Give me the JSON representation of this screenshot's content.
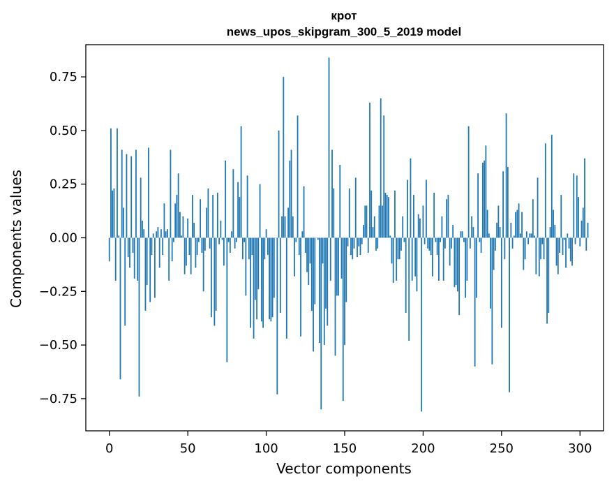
{
  "chart_data": {
    "type": "bar",
    "title": "крот",
    "subtitle": "news_upos_skipgram_300_5_2019 model",
    "xlabel": "Vector components",
    "ylabel": "Components values",
    "xlim": [
      -15,
      315
    ],
    "ylim": [
      -0.9,
      0.9
    ],
    "xticks": [
      0,
      50,
      100,
      150,
      200,
      250,
      300
    ],
    "yticks": [
      -0.75,
      -0.5,
      -0.25,
      0.0,
      0.25,
      0.5,
      0.75
    ],
    "ytick_labels": [
      "−0.75",
      "−0.50",
      "−0.25",
      "0.00",
      "0.25",
      "0.50",
      "0.75"
    ],
    "bar_color": "#1f77b4",
    "values": [
      -0.11,
      0.51,
      0.22,
      0.23,
      -0.2,
      0.51,
      0.01,
      -0.66,
      0.41,
      0.14,
      -0.41,
      0.39,
      -0.09,
      -0.14,
      0.38,
      -0.07,
      -0.19,
      0.41,
      -0.2,
      -0.74,
      0.28,
      0.08,
      0.04,
      -0.34,
      -0.22,
      0.42,
      -0.3,
      -0.08,
      0.02,
      -0.28,
      0.03,
      0.05,
      -0.14,
      0.04,
      -0.08,
      0.16,
      0.03,
      0.04,
      -0.2,
      0.41,
      -0.11,
      -0.02,
      0.16,
      0.2,
      0.3,
      0.12,
      0.01,
      0.1,
      -0.17,
      -0.13,
      0.09,
      -0.08,
      -0.17,
      0.2,
      0.07,
      -0.14,
      -0.08,
      -0.02,
      0.18,
      -0.07,
      -0.25,
      -0.06,
      0.14,
      0.23,
      -0.05,
      -0.37,
      0.2,
      -0.41,
      -0.34,
      0.21,
      -0.03,
      0.08,
      -0.01,
      -0.13,
      0.36,
      -0.58,
      -0.02,
      -0.07,
      0.03,
      0.32,
      -0.05,
      -0.02,
      0.26,
      0.19,
      0.52,
      -0.1,
      -0.02,
      -0.27,
      0.29,
      -0.1,
      -0.42,
      -0.08,
      -0.47,
      -0.29,
      -0.38,
      -0.24,
      0.25,
      -0.39,
      -0.42,
      -0.1,
      0.04,
      -0.08,
      -0.38,
      -0.39,
      -0.37,
      -0.28,
      0.0,
      -0.73,
      0.5,
      -0.35,
      0.1,
      0.75,
      0.1,
      -0.47,
      0.14,
      0.36,
      0.41,
      0.1,
      -0.18,
      -0.02,
      0.57,
      -0.08,
      -0.46,
      0.03,
      0.24,
      -0.07,
      -0.16,
      -0.22,
      -0.12,
      -0.34,
      -0.53,
      -0.31,
      0.0,
      -0.01,
      -0.49,
      -0.8,
      -0.12,
      -0.5,
      -0.33,
      -0.41,
      0.84,
      -0.2,
      0.41,
      0.23,
      -0.55,
      -0.27,
      -0.27,
      0.34,
      -0.19,
      -0.76,
      -0.5,
      -0.3,
      -0.04,
      0.23,
      -0.08,
      -0.1,
      -0.05,
      0.28,
      -0.09,
      -0.04,
      -0.08,
      -0.03,
      0.06,
      0.15,
      0.15,
      -0.07,
      0.63,
      0.22,
      0.05,
      0.1,
      -0.06,
      -0.05,
      0.15,
      0.65,
      0.15,
      0.57,
      0.21,
      0.2,
      0.19,
      0.01,
      -0.12,
      -0.21,
      0.22,
      -0.2,
      -0.1,
      -0.1,
      -0.06,
      0.1,
      -0.02,
      -0.35,
      0.27,
      -0.48,
      0.37,
      -0.2,
      0.2,
      -0.18,
      -0.25,
      0.11,
      0.09,
      -0.81,
      0.15,
      -0.03,
      0.27,
      -0.05,
      -0.06,
      -0.08,
      -0.18,
      0.21,
      -0.02,
      -0.08,
      -0.2,
      -0.02,
      0.1,
      -0.2,
      -0.05,
      0.18,
      0.2,
      -0.13,
      -0.05,
      0.06,
      -0.23,
      -0.22,
      -0.25,
      -0.36,
      0.03,
      0.03,
      -0.02,
      -0.28,
      -0.2,
      0.52,
      -0.05,
      0.1,
      0.05,
      -0.6,
      -0.28,
      0.3,
      -0.02,
      -0.07,
      0.35,
      0.36,
      0.43,
      0.13,
      0.02,
      -0.33,
      -0.59,
      -0.15,
      -0.06,
      0.07,
      0.15,
      0.05,
      -0.42,
      0.31,
      -0.1,
      0.58,
      0.33,
      -0.72,
      0.07,
      -0.05,
      0.01,
      0.12,
      0.13,
      0.16,
      0.02,
      0.12,
      -0.15,
      -0.1,
      0.03,
      -0.03,
      0.02,
      0.02,
      0.18,
      0.01,
      -0.17,
      0.28,
      -0.18,
      -0.1,
      -0.03,
      -0.1,
      0.44,
      -0.4,
      -0.35,
      0.05,
      0.48,
      0.13,
      0.06,
      -0.13,
      -0.17,
      -0.07,
      0.2,
      -0.08,
      -0.01,
      -0.14,
      0.02,
      -0.05,
      -0.11,
      -0.13,
      0.3,
      -0.03,
      0.29,
      0.19,
      -0.04,
      0.08,
      0.14,
      0.37,
      -0.06,
      0.07
    ]
  }
}
